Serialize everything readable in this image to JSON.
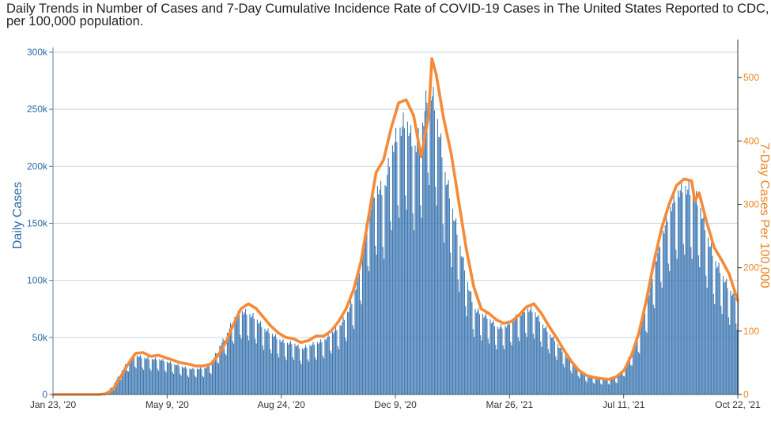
{
  "title": "Daily Trends in Number of Cases and 7-Day Cumulative Incidence Rate of COVID-19 Cases in The United States Reported to CDC, per 100,000 population.",
  "colors": {
    "bars": "#3f78b2",
    "line": "#f58a38",
    "grid": "#c9d7e6",
    "left_axis": "#2d6aa5",
    "right_axis": "#f0821e"
  },
  "chart_data": {
    "type": "bar",
    "title": "Daily Trends in Number of Cases and 7-Day Cumulative Incidence Rate of COVID-19 Cases in The United States Reported to CDC, per 100,000 population.",
    "xlabel": "",
    "ylabel": "Daily Cases",
    "y2label": "7-Day Cases Per 100,000",
    "x_range": [
      "2020-01-23",
      "2021-10-22"
    ],
    "x_ticks": [
      "Jan 23, '20",
      "May 9, '20",
      "Aug 24, '20",
      "Dec 9, '20",
      "Mar 26, '21",
      "Jul 11, '21",
      "Oct 22, '21"
    ],
    "ylim": [
      0,
      300000
    ],
    "y_ticks": [
      "0",
      "50k",
      "100k",
      "150k",
      "200k",
      "250k",
      "300k"
    ],
    "y2lim": [
      0,
      540
    ],
    "y2_ticks": [
      "0",
      "100",
      "200",
      "300",
      "400",
      "500"
    ],
    "grid": true,
    "legend": "none",
    "series": [
      {
        "type": "bar",
        "axis": "left",
        "weekly_points": [
          [
            "2020-01-23",
            0
          ],
          [
            "2020-02-27",
            0
          ],
          [
            "2020-03-12",
            600
          ],
          [
            "2020-03-19",
            8000
          ],
          [
            "2020-03-26",
            18000
          ],
          [
            "2020-04-02",
            28000
          ],
          [
            "2020-04-09",
            32000
          ],
          [
            "2020-04-16",
            30000
          ],
          [
            "2020-04-23",
            29000
          ],
          [
            "2020-04-30",
            29000
          ],
          [
            "2020-05-07",
            27000
          ],
          [
            "2020-05-14",
            25000
          ],
          [
            "2020-05-21",
            23000
          ],
          [
            "2020-05-28",
            21000
          ],
          [
            "2020-06-04",
            21000
          ],
          [
            "2020-06-11",
            21000
          ],
          [
            "2020-06-18",
            25000
          ],
          [
            "2020-06-25",
            38000
          ],
          [
            "2020-07-02",
            48000
          ],
          [
            "2020-07-09",
            62000
          ],
          [
            "2020-07-16",
            68000
          ],
          [
            "2020-07-23",
            66000
          ],
          [
            "2020-07-30",
            62000
          ],
          [
            "2020-08-06",
            54000
          ],
          [
            "2020-08-13",
            50000
          ],
          [
            "2020-08-20",
            45000
          ],
          [
            "2020-08-27",
            42000
          ],
          [
            "2020-09-03",
            42000
          ],
          [
            "2020-09-10",
            37000
          ],
          [
            "2020-09-17",
            40000
          ],
          [
            "2020-09-24",
            42000
          ],
          [
            "2020-10-01",
            44000
          ],
          [
            "2020-10-08",
            50000
          ],
          [
            "2020-10-15",
            55000
          ],
          [
            "2020-10-22",
            65000
          ],
          [
            "2020-10-29",
            80000
          ],
          [
            "2020-11-05",
            110000
          ],
          [
            "2020-11-12",
            150000
          ],
          [
            "2020-11-19",
            170000
          ],
          [
            "2020-11-26",
            165000
          ],
          [
            "2020-12-03",
            200000
          ],
          [
            "2020-12-10",
            215000
          ],
          [
            "2020-12-17",
            225000
          ],
          [
            "2020-12-24",
            200000
          ],
          [
            "2020-12-31",
            215000
          ],
          [
            "2021-01-07",
            255000
          ],
          [
            "2021-01-14",
            230000
          ],
          [
            "2021-01-21",
            185000
          ],
          [
            "2021-01-28",
            155000
          ],
          [
            "2021-02-04",
            125000
          ],
          [
            "2021-02-11",
            95000
          ],
          [
            "2021-02-18",
            70000
          ],
          [
            "2021-02-25",
            66000
          ],
          [
            "2021-03-04",
            62000
          ],
          [
            "2021-03-11",
            55000
          ],
          [
            "2021-03-18",
            55000
          ],
          [
            "2021-03-25",
            60000
          ],
          [
            "2021-04-01",
            65000
          ],
          [
            "2021-04-08",
            70000
          ],
          [
            "2021-04-15",
            68000
          ],
          [
            "2021-04-22",
            58000
          ],
          [
            "2021-04-29",
            50000
          ],
          [
            "2021-05-06",
            42000
          ],
          [
            "2021-05-13",
            33000
          ],
          [
            "2021-05-20",
            26000
          ],
          [
            "2021-05-27",
            20000
          ],
          [
            "2021-06-03",
            15000
          ],
          [
            "2021-06-10",
            13000
          ],
          [
            "2021-06-17",
            12000
          ],
          [
            "2021-06-24",
            12000
          ],
          [
            "2021-07-01",
            14000
          ],
          [
            "2021-07-08",
            22000
          ],
          [
            "2021-07-15",
            35000
          ],
          [
            "2021-07-22",
            50000
          ],
          [
            "2021-07-29",
            75000
          ],
          [
            "2021-08-05",
            105000
          ],
          [
            "2021-08-12",
            130000
          ],
          [
            "2021-08-19",
            150000
          ],
          [
            "2021-08-26",
            165000
          ],
          [
            "2021-09-02",
            170000
          ],
          [
            "2021-09-09",
            165000
          ],
          [
            "2021-09-16",
            155000
          ],
          [
            "2021-09-23",
            130000
          ],
          [
            "2021-09-30",
            110000
          ],
          [
            "2021-10-07",
            98000
          ],
          [
            "2021-10-14",
            85000
          ],
          [
            "2021-10-22",
            78000
          ]
        ]
      },
      {
        "type": "line",
        "axis": "right",
        "points": [
          [
            "2020-01-23",
            0
          ],
          [
            "2020-03-05",
            0
          ],
          [
            "2020-03-12",
            1
          ],
          [
            "2020-03-19",
            8
          ],
          [
            "2020-03-26",
            28
          ],
          [
            "2020-04-02",
            48
          ],
          [
            "2020-04-09",
            65
          ],
          [
            "2020-04-16",
            66
          ],
          [
            "2020-04-23",
            60
          ],
          [
            "2020-04-30",
            62
          ],
          [
            "2020-05-07",
            58
          ],
          [
            "2020-05-14",
            54
          ],
          [
            "2020-05-21",
            50
          ],
          [
            "2020-05-28",
            48
          ],
          [
            "2020-06-04",
            45
          ],
          [
            "2020-06-11",
            45
          ],
          [
            "2020-06-18",
            48
          ],
          [
            "2020-06-25",
            62
          ],
          [
            "2020-07-02",
            82
          ],
          [
            "2020-07-09",
            110
          ],
          [
            "2020-07-16",
            135
          ],
          [
            "2020-07-23",
            143
          ],
          [
            "2020-07-30",
            136
          ],
          [
            "2020-08-06",
            122
          ],
          [
            "2020-08-13",
            108
          ],
          [
            "2020-08-20",
            97
          ],
          [
            "2020-08-27",
            90
          ],
          [
            "2020-09-03",
            88
          ],
          [
            "2020-09-10",
            82
          ],
          [
            "2020-09-17",
            85
          ],
          [
            "2020-09-24",
            92
          ],
          [
            "2020-10-01",
            92
          ],
          [
            "2020-10-08",
            100
          ],
          [
            "2020-10-15",
            115
          ],
          [
            "2020-10-22",
            135
          ],
          [
            "2020-10-29",
            165
          ],
          [
            "2020-11-05",
            210
          ],
          [
            "2020-11-12",
            280
          ],
          [
            "2020-11-19",
            350
          ],
          [
            "2020-11-26",
            370
          ],
          [
            "2020-12-03",
            420
          ],
          [
            "2020-12-10",
            460
          ],
          [
            "2020-12-17",
            465
          ],
          [
            "2020-12-24",
            440
          ],
          [
            "2020-12-31",
            375
          ],
          [
            "2021-01-07",
            440
          ],
          [
            "2021-01-10",
            530
          ],
          [
            "2021-01-14",
            505
          ],
          [
            "2021-01-21",
            435
          ],
          [
            "2021-01-28",
            380
          ],
          [
            "2021-02-04",
            305
          ],
          [
            "2021-02-11",
            230
          ],
          [
            "2021-02-18",
            170
          ],
          [
            "2021-02-25",
            135
          ],
          [
            "2021-03-04",
            128
          ],
          [
            "2021-03-11",
            118
          ],
          [
            "2021-03-18",
            112
          ],
          [
            "2021-03-25",
            115
          ],
          [
            "2021-04-01",
            125
          ],
          [
            "2021-04-08",
            138
          ],
          [
            "2021-04-15",
            143
          ],
          [
            "2021-04-22",
            128
          ],
          [
            "2021-04-29",
            108
          ],
          [
            "2021-05-06",
            90
          ],
          [
            "2021-05-13",
            70
          ],
          [
            "2021-05-20",
            52
          ],
          [
            "2021-05-27",
            38
          ],
          [
            "2021-06-03",
            30
          ],
          [
            "2021-06-10",
            27
          ],
          [
            "2021-06-17",
            25
          ],
          [
            "2021-06-24",
            24
          ],
          [
            "2021-07-01",
            28
          ],
          [
            "2021-07-08",
            38
          ],
          [
            "2021-07-15",
            62
          ],
          [
            "2021-07-22",
            98
          ],
          [
            "2021-07-29",
            150
          ],
          [
            "2021-08-05",
            210
          ],
          [
            "2021-08-12",
            262
          ],
          [
            "2021-08-19",
            300
          ],
          [
            "2021-08-26",
            330
          ],
          [
            "2021-09-02",
            340
          ],
          [
            "2021-09-09",
            337
          ],
          [
            "2021-09-12",
            305
          ],
          [
            "2021-09-16",
            318
          ],
          [
            "2021-09-23",
            272
          ],
          [
            "2021-09-30",
            232
          ],
          [
            "2021-10-07",
            212
          ],
          [
            "2021-10-14",
            190
          ],
          [
            "2021-10-22",
            148
          ]
        ]
      }
    ]
  }
}
